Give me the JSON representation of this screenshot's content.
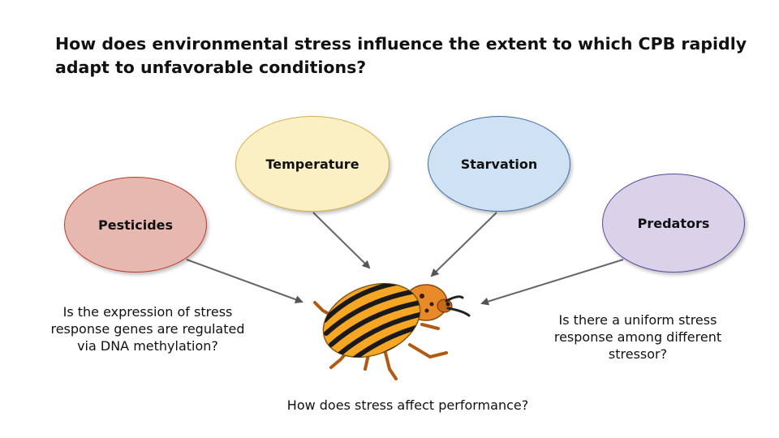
{
  "title": "How does environmental stress influence the extent to which CPB rapidly adapt to unfavorable conditions?",
  "stressors": {
    "pesticides": {
      "label": "Pesticides",
      "fill": "#e6b8af",
      "stroke": "#c0392b"
    },
    "temperature": {
      "label": "Temperature",
      "fill": "#fbefc4",
      "stroke": "#d4b24a"
    },
    "starvation": {
      "label": "Starvation",
      "fill": "#cfe2f3",
      "stroke": "#3c6ea8"
    },
    "predators": {
      "label": "Predators",
      "fill": "#d9d2e9",
      "stroke": "#5b4a9e"
    }
  },
  "questions": {
    "methylation": "Is the expression of stress response genes are regulated via DNA methylation?",
    "uniform": "Is there a uniform stress response among different stressor?",
    "performance": "How does stress affect performance?"
  },
  "beetle": {
    "icon": "colorado-potato-beetle-icon",
    "body_color": "#f5a623",
    "stripe_color": "#1a1a1a"
  }
}
